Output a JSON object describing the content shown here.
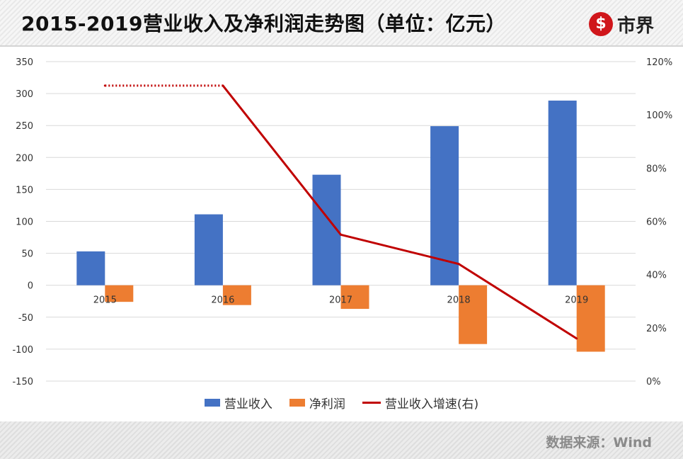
{
  "header": {
    "title": "2015-2019营业收入及净利润走势图（单位：亿元）",
    "logo_text": "市界",
    "logo_mark": "$"
  },
  "footer": {
    "source": "数据来源：Wind"
  },
  "colors": {
    "revenue": "#4472c4",
    "profit": "#ed7d31",
    "growth": "#c00000"
  },
  "chart_data": {
    "type": "bar",
    "title": "2015-2019营业收入及净利润走势图（单位：亿元）",
    "categories": [
      "2015",
      "2016",
      "2017",
      "2018",
      "2019"
    ],
    "series": [
      {
        "name": "营业收入",
        "type": "bar",
        "axis": "left",
        "values": [
          53,
          111,
          173,
          249,
          289
        ]
      },
      {
        "name": "净利润",
        "type": "bar",
        "axis": "left",
        "values": [
          -26,
          -31,
          -37,
          -92,
          -104
        ]
      },
      {
        "name": "营业收入增速(右)",
        "type": "line",
        "axis": "right",
        "values": [
          111,
          111,
          55,
          44,
          16
        ],
        "note_2015_dotted": true
      }
    ],
    "yleft": {
      "min": -150,
      "max": 350,
      "step": 50,
      "ticks": [
        "350",
        "300",
        "250",
        "200",
        "150",
        "100",
        "50",
        "0",
        "-50",
        "-100",
        "-150"
      ]
    },
    "yright": {
      "min": 0,
      "max": 120,
      "step": 20,
      "ticks": [
        "120%",
        "100%",
        "80%",
        "60%",
        "40%",
        "20%",
        "0%"
      ]
    },
    "grid": true,
    "legend_position": "bottom"
  }
}
